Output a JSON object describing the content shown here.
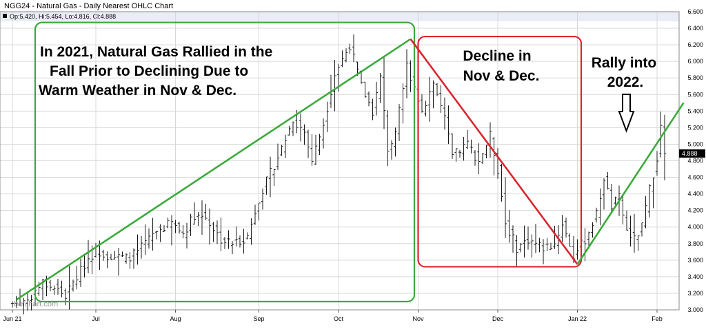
{
  "chart_data": {
    "type": "ohlc",
    "title": "NGG24 - Natural Gas - Daily Nearest OHLC Chart",
    "ohlc_readout": "Op:5.420, Hi:5.454, Lo:4.816, Cl:4.888",
    "last_price_label": "4.888",
    "last_price": 4.888,
    "watermark": "barchart.com",
    "ylim": [
      3.0,
      6.6
    ],
    "y_ticks": [
      "3.000",
      "3.200",
      "3.400",
      "3.600",
      "3.800",
      "4.000",
      "4.200",
      "4.400",
      "4.600",
      "4.800",
      "5.000",
      "5.200",
      "5.400",
      "5.600",
      "5.800",
      "6.000",
      "6.200",
      "6.400",
      "6.600"
    ],
    "x_ticks": [
      {
        "label": "Jun 21",
        "index": 0
      },
      {
        "label": "Jul",
        "index": 22
      },
      {
        "label": "Aug",
        "index": 43
      },
      {
        "label": "Sep",
        "index": 65
      },
      {
        "label": "Oct",
        "index": 86
      },
      {
        "label": "Nov",
        "index": 107
      },
      {
        "label": "Dec",
        "index": 128
      },
      {
        "label": "Jan 22",
        "index": 149
      },
      {
        "label": "Feb",
        "index": 170
      }
    ],
    "anchors": [
      {
        "i": 0,
        "v": 3.08
      },
      {
        "i": 4,
        "v": 3.12
      },
      {
        "i": 8,
        "v": 3.33
      },
      {
        "i": 12,
        "v": 3.24
      },
      {
        "i": 14,
        "v": 3.17
      },
      {
        "i": 20,
        "v": 3.62
      },
      {
        "i": 22,
        "v": 3.72
      },
      {
        "i": 25,
        "v": 3.66
      },
      {
        "i": 30,
        "v": 3.62
      },
      {
        "i": 33,
        "v": 3.7
      },
      {
        "i": 38,
        "v": 3.95
      },
      {
        "i": 42,
        "v": 4.05
      },
      {
        "i": 45,
        "v": 3.92
      },
      {
        "i": 48,
        "v": 4.15
      },
      {
        "i": 51,
        "v": 4.12
      },
      {
        "i": 55,
        "v": 3.85
      },
      {
        "i": 58,
        "v": 3.8
      },
      {
        "i": 62,
        "v": 3.88
      },
      {
        "i": 65,
        "v": 4.35
      },
      {
        "i": 68,
        "v": 4.65
      },
      {
        "i": 71,
        "v": 4.95
      },
      {
        "i": 74,
        "v": 5.3
      },
      {
        "i": 77,
        "v": 5.15
      },
      {
        "i": 79,
        "v": 4.8
      },
      {
        "i": 82,
        "v": 5.25
      },
      {
        "i": 85,
        "v": 5.85
      },
      {
        "i": 89,
        "v": 6.2
      },
      {
        "i": 92,
        "v": 5.7
      },
      {
        "i": 95,
        "v": 5.4
      },
      {
        "i": 97,
        "v": 5.8
      },
      {
        "i": 99,
        "v": 4.95
      },
      {
        "i": 101,
        "v": 5.1
      },
      {
        "i": 104,
        "v": 5.95
      },
      {
        "i": 106,
        "v": 5.7
      },
      {
        "i": 108,
        "v": 5.4
      },
      {
        "i": 111,
        "v": 5.75
      },
      {
        "i": 114,
        "v": 5.3
      },
      {
        "i": 116,
        "v": 4.85
      },
      {
        "i": 120,
        "v": 5.0
      },
      {
        "i": 123,
        "v": 4.8
      },
      {
        "i": 126,
        "v": 5.1
      },
      {
        "i": 128,
        "v": 4.7
      },
      {
        "i": 130,
        "v": 4.05
      },
      {
        "i": 133,
        "v": 3.75
      },
      {
        "i": 136,
        "v": 3.85
      },
      {
        "i": 140,
        "v": 3.75
      },
      {
        "i": 143,
        "v": 3.8
      },
      {
        "i": 145,
        "v": 4.05
      },
      {
        "i": 148,
        "v": 3.65
      },
      {
        "i": 151,
        "v": 3.85
      },
      {
        "i": 154,
        "v": 4.15
      },
      {
        "i": 156,
        "v": 4.6
      },
      {
        "i": 158,
        "v": 4.25
      },
      {
        "i": 160,
        "v": 4.35
      },
      {
        "i": 162,
        "v": 3.95
      },
      {
        "i": 164,
        "v": 3.85
      },
      {
        "i": 166,
        "v": 4.0
      },
      {
        "i": 168,
        "v": 4.45
      },
      {
        "i": 170,
        "v": 4.85
      },
      {
        "i": 171,
        "v": 5.2
      },
      {
        "i": 172,
        "v": 4.888
      }
    ],
    "trendlines": [
      {
        "color": "#3aaa3a",
        "from": {
          "i": 1,
          "v": 3.12
        },
        "to": {
          "i": 105,
          "v": 6.27
        }
      },
      {
        "color": "#d9262e",
        "from": {
          "i": 105,
          "v": 6.27
        },
        "to": {
          "i": 149,
          "v": 3.55
        }
      },
      {
        "color": "#3aaa3a",
        "from": {
          "i": 149,
          "v": 3.55
        },
        "to": {
          "i": 177,
          "v": 5.5
        }
      }
    ],
    "boxes": [
      {
        "color": "#3aaa3a",
        "from_i": 6,
        "to_i": 106,
        "top": 6.47,
        "bottom": 3.1
      },
      {
        "color": "#d9262e",
        "from_i": 107,
        "to_i": 150,
        "top": 6.3,
        "bottom": 3.52
      }
    ]
  },
  "annotations": {
    "green_box": [
      "In 2021, Natural Gas Rallied in the",
      "Fall Prior to Declining Due to",
      "Warm Weather in Nov & Dec."
    ],
    "red_box": [
      "Decline in",
      "Nov & Dec."
    ],
    "rally": [
      "Rally into",
      "2022."
    ]
  },
  "colors": {
    "green": "#3aaa3a",
    "red": "#d9262e",
    "bars": "#1a1a1a",
    "grid": "#d8d8d8",
    "header": "#e9edf6"
  }
}
